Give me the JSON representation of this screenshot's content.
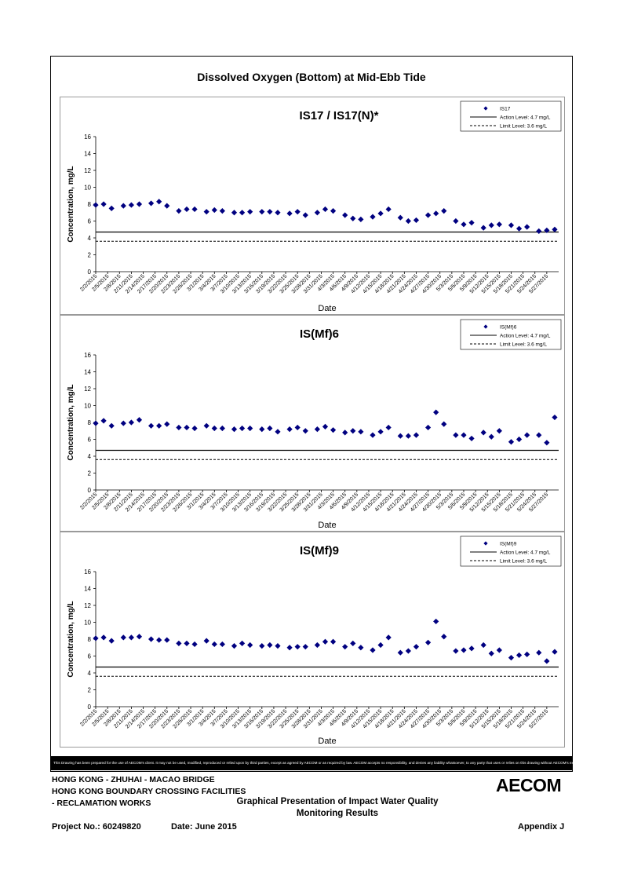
{
  "page_title": "Dissolved Oxygen (Bottom) at Mid-Ebb Tide",
  "disclaimer": "This Drawing has been prepared for the use of AECOM's client. It may not be used, modified, reproduced or relied upon by third parties, except as agreed by AECOM or as required by law. AECOM accepts no responsibility, and denies any liability whatsoever, to any party that uses or relies on this drawing without AECOM's express written consent.",
  "footer": {
    "line1": "HONG KONG - ZHUHAI - MACAO BRIDGE",
    "line2": "HONG KONG BOUNDARY CROSSING FACILITIES",
    "line3": "- RECLAMATION WORKS",
    "center_title_1": "Graphical Presentation of Impact Water Quality",
    "center_title_2": "Monitoring Results",
    "project_no": "Project No.: 60249820",
    "date": "Date: June 2015",
    "appendix": "Appendix J",
    "logo": "AECOM"
  },
  "colors": {
    "marker": "#000080",
    "line": "#000000",
    "frame": "#9a9a9a"
  },
  "chart_data": [
    {
      "type": "scatter",
      "title": "IS17 / IS17(N)*",
      "xlabel": "Date",
      "ylabel": "Concentration, mg/L",
      "ylim": [
        0,
        16
      ],
      "yticks": [
        0,
        2,
        4,
        6,
        8,
        10,
        12,
        14,
        16
      ],
      "xlim": [
        0,
        117
      ],
      "x_tick_labels": [
        "2/2/2015",
        "2/5/2015",
        "2/8/2015",
        "2/11/2015",
        "2/14/2015",
        "2/17/2015",
        "2/20/2015",
        "2/23/2015",
        "2/26/2015",
        "3/1/2015",
        "3/4/2015",
        "3/7/2015",
        "3/10/2015",
        "3/13/2015",
        "3/16/2015",
        "3/19/2015",
        "3/22/2015",
        "3/25/2015",
        "3/28/2015",
        "3/31/2015",
        "4/3/2015",
        "4/6/2015",
        "4/9/2015",
        "4/12/2015",
        "4/15/2015",
        "4/18/2015",
        "4/21/2015",
        "4/24/2015",
        "4/27/2015",
        "4/30/2015",
        "5/3/2015",
        "5/6/2015",
        "5/9/2015",
        "5/12/2015",
        "5/15/2015",
        "5/18/2015",
        "5/21/2015",
        "5/24/2015",
        "5/27/2015"
      ],
      "legend_position": "top-right",
      "grid": false,
      "series": [
        {
          "name": "IS17",
          "kind": "marker",
          "x": [
            "2/2/2015",
            "2/4/2015",
            "2/6/2015",
            "2/9/2015",
            "2/11/2015",
            "2/13/2015",
            "2/16/2015",
            "2/18/2015",
            "2/20/2015",
            "2/23/2015",
            "2/25/2015",
            "2/27/2015",
            "3/2/2015",
            "3/4/2015",
            "3/6/2015",
            "3/9/2015",
            "3/11/2015",
            "3/13/2015",
            "3/16/2015",
            "3/18/2015",
            "3/20/2015",
            "3/23/2015",
            "3/25/2015",
            "3/27/2015",
            "3/30/2015",
            "4/1/2015",
            "4/3/2015",
            "4/6/2015",
            "4/8/2015",
            "4/10/2015",
            "4/13/2015",
            "4/15/2015",
            "4/17/2015",
            "4/20/2015",
            "4/22/2015",
            "4/24/2015",
            "4/27/2015",
            "4/29/2015",
            "5/1/2015",
            "5/4/2015",
            "5/6/2015",
            "5/8/2015",
            "5/11/2015",
            "5/13/2015",
            "5/15/2015",
            "5/18/2015",
            "5/20/2015",
            "5/22/2015",
            "5/25/2015",
            "5/27/2015",
            "5/29/2015"
          ],
          "y": [
            7.9,
            8.0,
            7.5,
            7.8,
            7.9,
            8.0,
            8.1,
            8.3,
            7.8,
            7.2,
            7.4,
            7.4,
            7.1,
            7.3,
            7.2,
            7.0,
            7.0,
            7.1,
            7.1,
            7.1,
            7.0,
            6.9,
            7.1,
            6.7,
            7.0,
            7.4,
            7.2,
            6.7,
            6.3,
            6.2,
            6.5,
            6.9,
            7.4,
            6.4,
            6.0,
            6.1,
            6.7,
            6.9,
            7.2,
            6.0,
            5.6,
            5.8,
            5.2,
            5.5,
            5.6,
            5.5,
            5.1,
            5.3,
            4.8,
            4.9,
            5.0
          ]
        },
        {
          "name": "Action Level: 4.7 mg/L",
          "kind": "solid",
          "value": 4.7
        },
        {
          "name": "Limit Level: 3.6 mg/L",
          "kind": "dashed",
          "value": 3.6
        }
      ]
    },
    {
      "type": "scatter",
      "title": "IS(Mf)6",
      "xlabel": "Date",
      "ylabel": "Concentration, mg/L",
      "ylim": [
        0,
        16
      ],
      "yticks": [
        0,
        2,
        4,
        6,
        8,
        10,
        12,
        14,
        16
      ],
      "xlim": [
        0,
        117
      ],
      "x_tick_labels": [
        "2/2/2015",
        "2/5/2015",
        "2/8/2015",
        "2/11/2015",
        "2/14/2015",
        "2/17/2015",
        "2/20/2015",
        "2/23/2015",
        "2/26/2015",
        "3/1/2015",
        "3/4/2015",
        "3/7/2015",
        "3/10/2015",
        "3/13/2015",
        "3/16/2015",
        "3/19/2015",
        "3/22/2015",
        "3/25/2015",
        "3/28/2015",
        "3/31/2015",
        "4/3/2015",
        "4/6/2015",
        "4/9/2015",
        "4/12/2015",
        "4/15/2015",
        "4/18/2015",
        "4/21/2015",
        "4/24/2015",
        "4/27/2015",
        "4/30/2015",
        "5/3/2015",
        "5/6/2015",
        "5/9/2015",
        "5/12/2015",
        "5/15/2015",
        "5/18/2015",
        "5/21/2015",
        "5/24/2015",
        "5/27/2015"
      ],
      "legend_position": "top-right",
      "grid": false,
      "series": [
        {
          "name": "IS(Mf)6",
          "kind": "marker",
          "x": [
            "2/2/2015",
            "2/4/2015",
            "2/6/2015",
            "2/9/2015",
            "2/11/2015",
            "2/13/2015",
            "2/16/2015",
            "2/18/2015",
            "2/20/2015",
            "2/23/2015",
            "2/25/2015",
            "2/27/2015",
            "3/2/2015",
            "3/4/2015",
            "3/6/2015",
            "3/9/2015",
            "3/11/2015",
            "3/13/2015",
            "3/16/2015",
            "3/18/2015",
            "3/20/2015",
            "3/23/2015",
            "3/25/2015",
            "3/27/2015",
            "3/30/2015",
            "4/1/2015",
            "4/3/2015",
            "4/6/2015",
            "4/8/2015",
            "4/10/2015",
            "4/13/2015",
            "4/15/2015",
            "4/17/2015",
            "4/20/2015",
            "4/22/2015",
            "4/24/2015",
            "4/27/2015",
            "4/29/2015",
            "5/1/2015",
            "5/4/2015",
            "5/6/2015",
            "5/8/2015",
            "5/11/2015",
            "5/13/2015",
            "5/15/2015",
            "5/18/2015",
            "5/20/2015",
            "5/22/2015",
            "5/25/2015",
            "5/27/2015",
            "5/29/2015"
          ],
          "y": [
            7.9,
            8.2,
            7.6,
            7.9,
            8.0,
            8.3,
            7.6,
            7.6,
            7.8,
            7.4,
            7.4,
            7.3,
            7.6,
            7.3,
            7.3,
            7.2,
            7.3,
            7.3,
            7.2,
            7.3,
            6.9,
            7.2,
            7.4,
            7.0,
            7.2,
            7.5,
            7.1,
            6.8,
            7.0,
            6.9,
            6.5,
            6.9,
            7.4,
            6.4,
            6.4,
            6.5,
            7.4,
            9.2,
            7.8,
            6.5,
            6.5,
            6.1,
            6.8,
            6.3,
            7.0,
            5.7,
            6.0,
            6.5,
            6.5,
            5.6,
            8.6
          ]
        },
        {
          "name": "Action Level: 4.7 mg/L",
          "kind": "solid",
          "value": 4.7
        },
        {
          "name": "Limit Level: 3.6 mg/L",
          "kind": "dashed",
          "value": 3.6
        }
      ]
    },
    {
      "type": "scatter",
      "title": "IS(Mf)9",
      "xlabel": "Date",
      "ylabel": "Concentration, mg/L",
      "ylim": [
        0,
        16
      ],
      "yticks": [
        0,
        2,
        4,
        6,
        8,
        10,
        12,
        14,
        16
      ],
      "xlim": [
        0,
        117
      ],
      "x_tick_labels": [
        "2/2/2015",
        "2/5/2015",
        "2/8/2015",
        "2/11/2015",
        "2/14/2015",
        "2/17/2015",
        "2/20/2015",
        "2/23/2015",
        "2/26/2015",
        "3/1/2015",
        "3/4/2015",
        "3/7/2015",
        "3/10/2015",
        "3/13/2015",
        "3/16/2015",
        "3/19/2015",
        "3/22/2015",
        "3/25/2015",
        "3/28/2015",
        "3/31/2015",
        "4/3/2015",
        "4/6/2015",
        "4/9/2015",
        "4/12/2015",
        "4/15/2015",
        "4/18/2015",
        "4/21/2015",
        "4/24/2015",
        "4/27/2015",
        "4/30/2015",
        "5/3/2015",
        "5/6/2015",
        "5/9/2015",
        "5/12/2015",
        "5/15/2015",
        "5/18/2015",
        "5/21/2015",
        "5/24/2015",
        "5/27/2015"
      ],
      "legend_position": "top-right",
      "grid": false,
      "series": [
        {
          "name": "IS(Mf)9",
          "kind": "marker",
          "x": [
            "2/2/2015",
            "2/4/2015",
            "2/6/2015",
            "2/9/2015",
            "2/11/2015",
            "2/13/2015",
            "2/16/2015",
            "2/18/2015",
            "2/20/2015",
            "2/23/2015",
            "2/25/2015",
            "2/27/2015",
            "3/2/2015",
            "3/4/2015",
            "3/6/2015",
            "3/9/2015",
            "3/11/2015",
            "3/13/2015",
            "3/16/2015",
            "3/18/2015",
            "3/20/2015",
            "3/23/2015",
            "3/25/2015",
            "3/27/2015",
            "3/30/2015",
            "4/1/2015",
            "4/3/2015",
            "4/6/2015",
            "4/8/2015",
            "4/10/2015",
            "4/13/2015",
            "4/15/2015",
            "4/17/2015",
            "4/20/2015",
            "4/22/2015",
            "4/24/2015",
            "4/27/2015",
            "4/29/2015",
            "5/1/2015",
            "5/4/2015",
            "5/6/2015",
            "5/8/2015",
            "5/11/2015",
            "5/13/2015",
            "5/15/2015",
            "5/18/2015",
            "5/20/2015",
            "5/22/2015",
            "5/25/2015",
            "5/27/2015",
            "5/29/2015"
          ],
          "y": [
            8.1,
            8.2,
            7.8,
            8.2,
            8.2,
            8.3,
            8.0,
            7.9,
            7.9,
            7.5,
            7.5,
            7.4,
            7.8,
            7.4,
            7.4,
            7.2,
            7.5,
            7.3,
            7.2,
            7.3,
            7.2,
            7.0,
            7.1,
            7.1,
            7.3,
            7.7,
            7.7,
            7.1,
            7.5,
            7.0,
            6.7,
            7.3,
            8.2,
            6.4,
            6.6,
            7.1,
            7.6,
            10.1,
            8.3,
            6.6,
            6.7,
            6.9,
            7.3,
            6.3,
            6.7,
            5.8,
            6.1,
            6.2,
            6.4,
            5.4,
            6.5
          ]
        },
        {
          "name": "Action Level: 4.7 mg/L",
          "kind": "solid",
          "value": 4.7
        },
        {
          "name": "Limit Level: 3.6 mg/L",
          "kind": "dashed",
          "value": 3.6
        }
      ]
    }
  ]
}
